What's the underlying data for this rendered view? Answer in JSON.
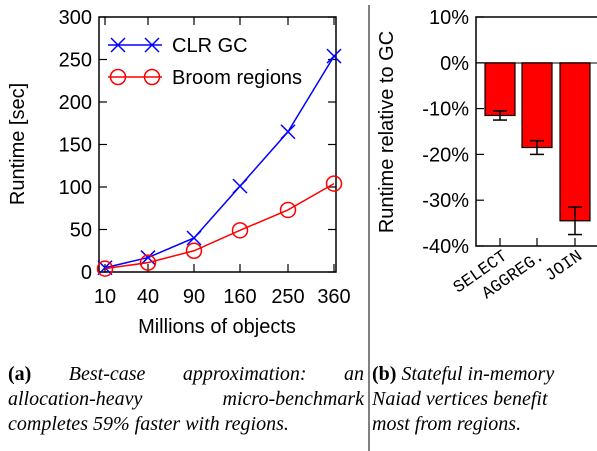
{
  "chart_data": [
    {
      "type": "line",
      "xlabel": "Millions of objects",
      "ylabel": "Runtime [sec]",
      "categories": [
        "10",
        "40",
        "90",
        "160",
        "250",
        "360"
      ],
      "ylim": [
        0,
        300
      ],
      "yticks": [
        "0",
        "50",
        "100",
        "150",
        "200",
        "250",
        "300"
      ],
      "legend_position": "top-left",
      "series": [
        {
          "name": "CLR GC",
          "marker": "x",
          "color": "#0000ff",
          "values": [
            5,
            17,
            40,
            101,
            165,
            254
          ]
        },
        {
          "name": "Broom regions",
          "marker": "circle",
          "color": "#ff0000",
          "values": [
            4,
            11,
            25,
            49,
            73,
            104
          ]
        }
      ]
    },
    {
      "type": "bar",
      "ylabel": "Runtime relative to GC",
      "categories": [
        "SELECT",
        "AGGREG.",
        "JOIN"
      ],
      "values": [
        -11.5,
        -18.5,
        -34.5
      ],
      "error_low": [
        -12.5,
        -20.0,
        -37.5
      ],
      "error_high": [
        -10.5,
        -17.0,
        -31.5
      ],
      "ylim": [
        -40,
        10
      ],
      "yticks": [
        "10%",
        "0%",
        "-10%",
        "-20%",
        "-30%",
        "-40%"
      ],
      "bar_color": "#ff0000"
    }
  ],
  "captions": {
    "a_label": "(a)",
    "a_line1": "Best-case approximation: an",
    "a_line2": "allocation-heavy micro-benchmark",
    "a_line3": "completes 59% faster with regions.",
    "b_label": "(b)",
    "b_line1": "Stateful in-memory",
    "b_line2": "Naiad vertices benefit",
    "b_line3": "most from regions."
  }
}
